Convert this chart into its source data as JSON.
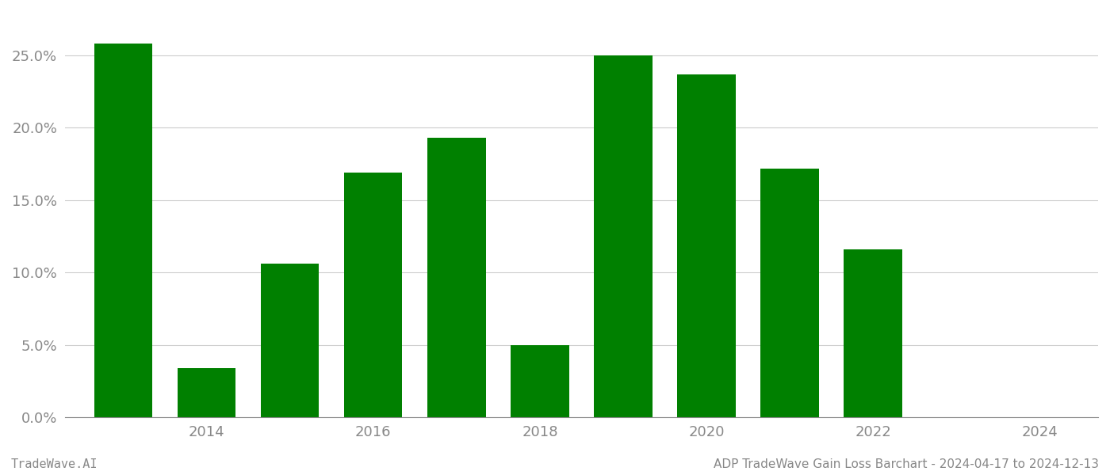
{
  "years": [
    2013,
    2014,
    2015,
    2016,
    2017,
    2018,
    2019,
    2020,
    2021,
    2022,
    2023
  ],
  "values": [
    0.258,
    0.034,
    0.106,
    0.169,
    0.193,
    0.05,
    0.25,
    0.237,
    0.172,
    0.116,
    0.0
  ],
  "bar_color": "#008000",
  "background_color": "#ffffff",
  "grid_color": "#cccccc",
  "ylim": [
    0,
    0.28
  ],
  "yticks": [
    0.0,
    0.05,
    0.1,
    0.15,
    0.2,
    0.25
  ],
  "xtick_labels": [
    "2014",
    "2016",
    "2018",
    "2020",
    "2022",
    "2024"
  ],
  "xtick_positions": [
    2014,
    2016,
    2018,
    2020,
    2022,
    2024
  ],
  "xlim": [
    2012.3,
    2024.7
  ],
  "bar_width": 0.7,
  "axis_label_color": "#888888",
  "footer_color": "#888888",
  "footer_left": "TradeWave.AI",
  "footer_right": "ADP TradeWave Gain Loss Barchart - 2024-04-17 to 2024-12-13",
  "tick_labelsize": 13,
  "footer_fontsize": 11
}
